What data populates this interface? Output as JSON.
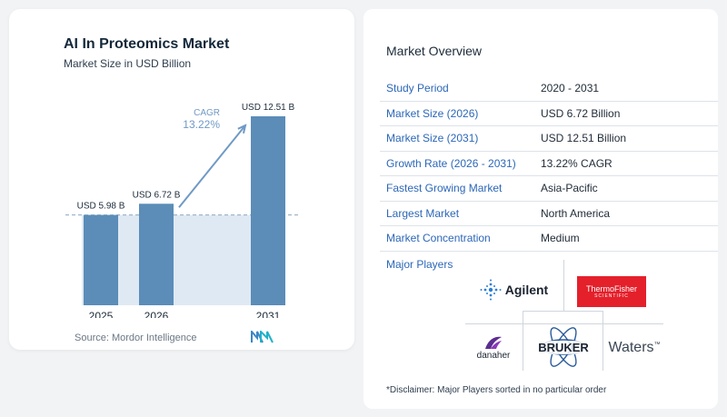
{
  "title": "AI In Proteomics Market",
  "subtitle": "Market Size in USD Billion",
  "source": "Source:  Mordor Intelligence",
  "chart_data": {
    "type": "bar",
    "title": "AI In Proteomics Market",
    "subtitle": "Market Size in USD Billion",
    "categories": [
      "2025",
      "2026",
      "2031"
    ],
    "values": [
      5.98,
      6.72,
      12.51
    ],
    "value_labels": [
      "USD 5.98 B",
      "USD 6.72 B",
      "USD 12.51 B"
    ],
    "cagr_label": "CAGR",
    "cagr_value": "13.22%",
    "ylim": [
      0,
      12.51
    ],
    "grid": false,
    "bar_color": "#5b8db8",
    "line_color": "#6f99c6"
  },
  "overview": {
    "title": "Market Overview",
    "rows": [
      {
        "label": "Study Period",
        "value": "2020 - 2031"
      },
      {
        "label": "Market Size (2026)",
        "value": "USD 6.72 Billion"
      },
      {
        "label": "Market Size (2031)",
        "value": "USD 12.51 Billion"
      },
      {
        "label": "Growth Rate (2026 - 2031)",
        "value": "13.22% CAGR"
      },
      {
        "label": "Fastest Growing Market",
        "value": "Asia-Pacific"
      },
      {
        "label": "Largest Market",
        "value": "North America"
      },
      {
        "label": "Market Concentration",
        "value": "Medium"
      }
    ]
  },
  "players": {
    "title": "Major Players",
    "agilent": "Agilent",
    "thermo_line1": "ThermoFisher",
    "thermo_line2": "SCIENTIFIC",
    "danaher": "danaher",
    "bruker": "BRUKER",
    "waters": "Waters",
    "waters_tm": "™"
  },
  "disclaimer": "*Disclaimer: Major Players sorted in no particular order",
  "colors": {
    "accent": "#2c67b8",
    "thermo_red": "#e4202b",
    "danaher_purple": "#5b2d90"
  }
}
